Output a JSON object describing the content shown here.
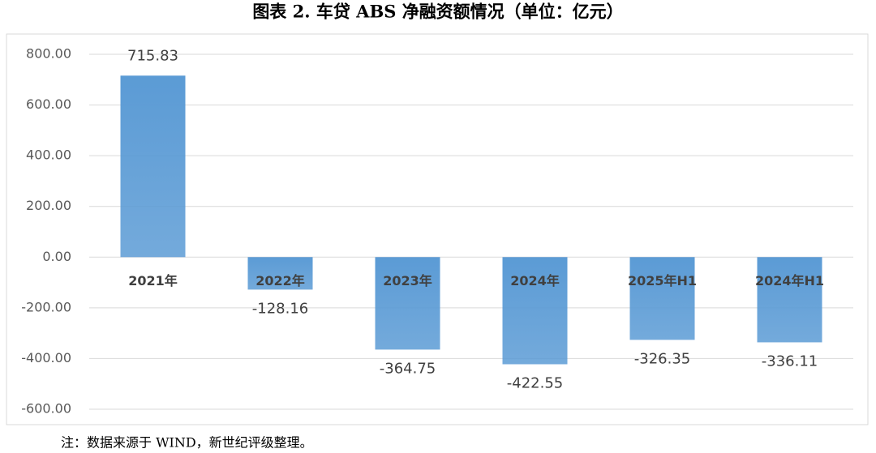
{
  "chart_data": {
    "type": "bar",
    "title": "图表 2.  车贷 ABS 净融资额情况（单位：亿元）",
    "categories": [
      "2021年",
      "2022年",
      "2023年",
      "2024年",
      "2025年H1",
      "2024年H1"
    ],
    "values": [
      715.83,
      -128.16,
      -364.75,
      -422.55,
      -326.35,
      -336.11
    ],
    "color": "#5b9bd5",
    "ylim": [
      -600,
      800
    ],
    "yticks": [
      {
        "value": -600,
        "label": "-600.00"
      },
      {
        "value": -400,
        "label": "-400.00"
      },
      {
        "value": -200,
        "label": "-200.00"
      },
      {
        "value": 0,
        "label": "0.00"
      },
      {
        "value": 200,
        "label": "200.00"
      },
      {
        "value": 400,
        "label": "400.00"
      },
      {
        "value": 600,
        "label": "600.00"
      },
      {
        "value": 800,
        "label": "800.00"
      }
    ],
    "grid": true,
    "note": "注：数据来源于 WIND，新世纪评级整理。"
  }
}
